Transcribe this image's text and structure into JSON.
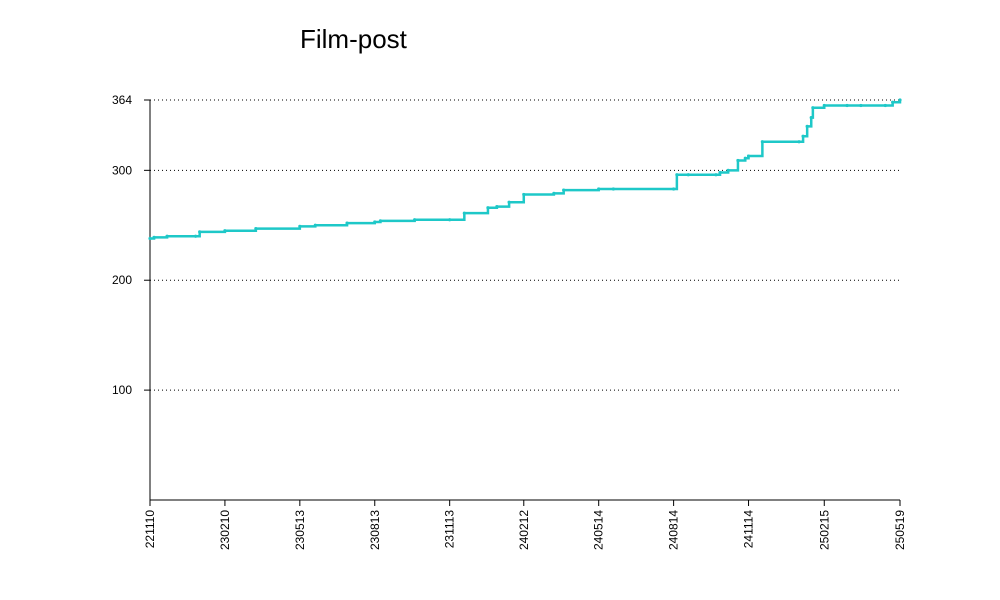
{
  "chart_data": {
    "type": "line",
    "title": "Film-post",
    "xlabel": "",
    "ylabel": "",
    "ylim": [
      0,
      364
    ],
    "yticks": [
      100,
      200,
      300,
      364
    ],
    "xticks": [
      "221110",
      "230210",
      "230513",
      "230813",
      "231113",
      "240212",
      "240514",
      "240814",
      "241114",
      "250215",
      "250519"
    ],
    "grid": "horizontal-dotted",
    "color": "#1ec8c8",
    "series": [
      {
        "x": [
          "221110",
          "221115",
          "221201",
          "230105",
          "230110",
          "230210",
          "230320",
          "230513",
          "230601",
          "230710",
          "230813",
          "230820",
          "231001",
          "231113",
          "231201",
          "231230",
          "240110",
          "240125",
          "240212",
          "240320",
          "240401",
          "240514",
          "240601",
          "240814",
          "240818",
          "240901",
          "241005",
          "241010",
          "241020",
          "241101",
          "241110",
          "241114",
          "241201",
          "250115",
          "250120",
          "250125",
          "250130",
          "250201",
          "250215",
          "250315",
          "250401",
          "250501",
          "250510",
          "250519"
        ],
        "y": [
          238,
          239,
          240,
          240,
          244,
          245,
          247,
          249,
          250,
          252,
          253,
          254,
          255,
          255,
          261,
          266,
          267,
          271,
          278,
          279,
          282,
          283,
          283,
          283,
          296,
          296,
          296,
          298,
          300,
          309,
          311,
          313,
          326,
          326,
          331,
          340,
          348,
          357,
          359,
          359,
          359,
          359,
          362,
          364
        ]
      }
    ]
  }
}
